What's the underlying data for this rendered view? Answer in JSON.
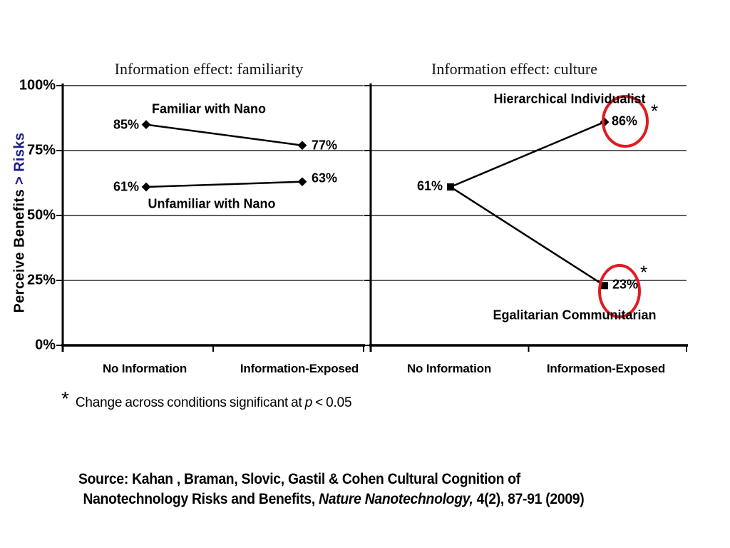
{
  "y_axis": {
    "title_black": "Perceive Benefits ",
    "title_blue": "> Risks",
    "ticks": [
      "100%",
      "75%",
      "50%",
      "25%",
      "0%"
    ]
  },
  "footnote": {
    "marker": "*",
    "before_p": "Change across conditions significant at ",
    "p": "p",
    "after_p": " < 0.05"
  },
  "source": {
    "line1": "Source: Kahan , Braman, Slovic, Gastil & Cohen Cultural Cognition of",
    "line2_regular": "Nanotechnology Risks and Benefits, ",
    "line2_italic": "Nature Nanotechnology,",
    "line2_tail": " 4(2), 87-91 (2009)"
  },
  "colors": {
    "line_black": "#000000",
    "top_border_gray": "#595959",
    "ellipse_red": "#e11b22",
    "navy": "#1c1c8a"
  },
  "chart_data": [
    {
      "type": "line",
      "title": "Information effect: familiarity",
      "categories": [
        "No Information",
        "Information-Exposed"
      ],
      "ylim": [
        0,
        100
      ],
      "ytick_values": [
        0,
        25,
        50,
        75,
        100
      ],
      "grid": true,
      "legend_position": "inline-labels",
      "series": [
        {
          "name": "Familiar with Nano",
          "values": [
            85,
            77
          ],
          "value_labels": [
            "85%",
            "77%"
          ],
          "markers": [
            "diamond",
            "diamond"
          ]
        },
        {
          "name": "Unfamiliar with Nano",
          "values": [
            61,
            63
          ],
          "value_labels": [
            "61%",
            "63%"
          ],
          "markers": [
            "diamond",
            "diamond"
          ]
        }
      ]
    },
    {
      "type": "line",
      "title": "Information effect: culture",
      "categories": [
        "No Information",
        "Information-Exposed"
      ],
      "ylim": [
        0,
        100
      ],
      "ytick_values": [
        0,
        25,
        50,
        75,
        100
      ],
      "grid": true,
      "legend_position": "inline-labels",
      "significance_marker": "*",
      "series": [
        {
          "name": "Hierarchical Individualist",
          "values": [
            61,
            86
          ],
          "value_labels": [
            "61%",
            "86%"
          ],
          "markers": [
            "square",
            "diamond"
          ],
          "significant": true,
          "circled_value": "86%"
        },
        {
          "name": "Egalitarian Communitarian",
          "values": [
            61,
            23
          ],
          "value_labels": [
            null,
            "23%"
          ],
          "markers": [
            "square",
            "square"
          ],
          "significant": true,
          "circled_value": "23%"
        }
      ]
    }
  ]
}
